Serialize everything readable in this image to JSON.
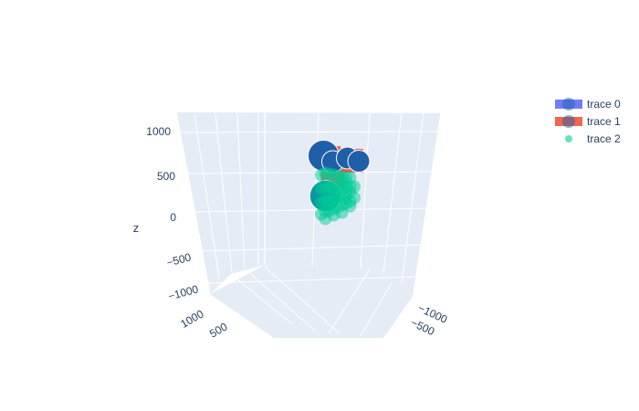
{
  "chart_data": {
    "type": "scatter3d",
    "title": "",
    "axes": {
      "x": {
        "title": "",
        "ticks": [
          "1000",
          "500"
        ]
      },
      "y": {
        "title": "",
        "ticks": [
          "−1000",
          "−500"
        ]
      },
      "z": {
        "title": "z",
        "ticks": [
          "1000",
          "500",
          "0",
          "−500",
          "−1000"
        ],
        "range": [
          -1000,
          1000
        ]
      }
    },
    "grid": true,
    "legend_position": "top-right",
    "series": [
      {
        "name": "trace 0",
        "color": "#636efa",
        "marker_color": "#1f5fa8",
        "marker_symbol": "circle",
        "points": [
          {
            "x": 250,
            "y": -400,
            "z": 560,
            "size": "large"
          },
          {
            "x": 150,
            "y": -250,
            "z": 470,
            "size": "medium"
          },
          {
            "x": -50,
            "y": -150,
            "z": 480,
            "size": "medium"
          },
          {
            "x": -200,
            "y": -50,
            "z": 420,
            "size": "medium"
          },
          {
            "x": 250,
            "y": -300,
            "z": 110,
            "size": "large"
          }
        ]
      },
      {
        "name": "trace 1",
        "color": "#ef553b",
        "marker_symbol": "square",
        "points": [
          {
            "x": 200,
            "y": -300,
            "z": 520
          },
          {
            "x": 50,
            "y": -200,
            "z": 470
          },
          {
            "x": -100,
            "y": -100,
            "z": 440
          },
          {
            "x": 150,
            "y": -250,
            "z": 300
          }
        ]
      },
      {
        "name": "trace 2",
        "color": "#00cc96",
        "marker_symbol": "circle",
        "points": [
          {
            "x": 300,
            "y": -350,
            "z": 350
          },
          {
            "x": 250,
            "y": -300,
            "z": 360
          },
          {
            "x": 200,
            "y": -250,
            "z": 340
          },
          {
            "x": 150,
            "y": -200,
            "z": 320
          },
          {
            "x": 100,
            "y": -150,
            "z": 300
          },
          {
            "x": 50,
            "y": -100,
            "z": 280
          },
          {
            "x": 0,
            "y": -50,
            "z": 260
          },
          {
            "x": -50,
            "y": 0,
            "z": 250
          },
          {
            "x": 300,
            "y": -350,
            "z": 200
          },
          {
            "x": 250,
            "y": -300,
            "z": 200
          },
          {
            "x": 200,
            "y": -250,
            "z": 200
          },
          {
            "x": 150,
            "y": -200,
            "z": 190
          },
          {
            "x": 100,
            "y": -150,
            "z": 180
          },
          {
            "x": 50,
            "y": -100,
            "z": 170
          },
          {
            "x": 0,
            "y": -50,
            "z": 160
          },
          {
            "x": -50,
            "y": 0,
            "z": 150
          },
          {
            "x": 300,
            "y": -350,
            "z": 50
          },
          {
            "x": 250,
            "y": -300,
            "z": 60
          },
          {
            "x": 200,
            "y": -250,
            "z": 60
          },
          {
            "x": 150,
            "y": -200,
            "z": 70
          },
          {
            "x": 100,
            "y": -150,
            "z": 70
          },
          {
            "x": 50,
            "y": -100,
            "z": 80
          },
          {
            "x": 0,
            "y": -50,
            "z": 80
          },
          {
            "x": -50,
            "y": 0,
            "z": 90
          },
          {
            "x": 300,
            "y": -350,
            "z": -80
          },
          {
            "x": 250,
            "y": -300,
            "z": -60
          },
          {
            "x": 200,
            "y": -250,
            "z": -60
          },
          {
            "x": 150,
            "y": -200,
            "z": -50
          },
          {
            "x": 100,
            "y": -150,
            "z": -40
          },
          {
            "x": 50,
            "y": -100,
            "z": -30
          },
          {
            "x": 0,
            "y": -50,
            "z": -20
          },
          {
            "x": -50,
            "y": 0,
            "z": -10
          },
          {
            "x": 250,
            "y": -300,
            "z": -140
          },
          {
            "x": 150,
            "y": -200,
            "z": -120
          },
          {
            "x": 50,
            "y": -100,
            "z": -110
          },
          {
            "x": -50,
            "y": 0,
            "z": -60
          },
          {
            "x": 0,
            "y": -100,
            "z": 40
          },
          {
            "x": -100,
            "y": 50,
            "z": 20
          },
          {
            "x": -100,
            "y": 50,
            "z": 140
          },
          {
            "x": 0,
            "y": -150,
            "z": 220
          },
          {
            "x": 250,
            "y": -300,
            "z": 110,
            "size": "large"
          }
        ]
      }
    ]
  }
}
